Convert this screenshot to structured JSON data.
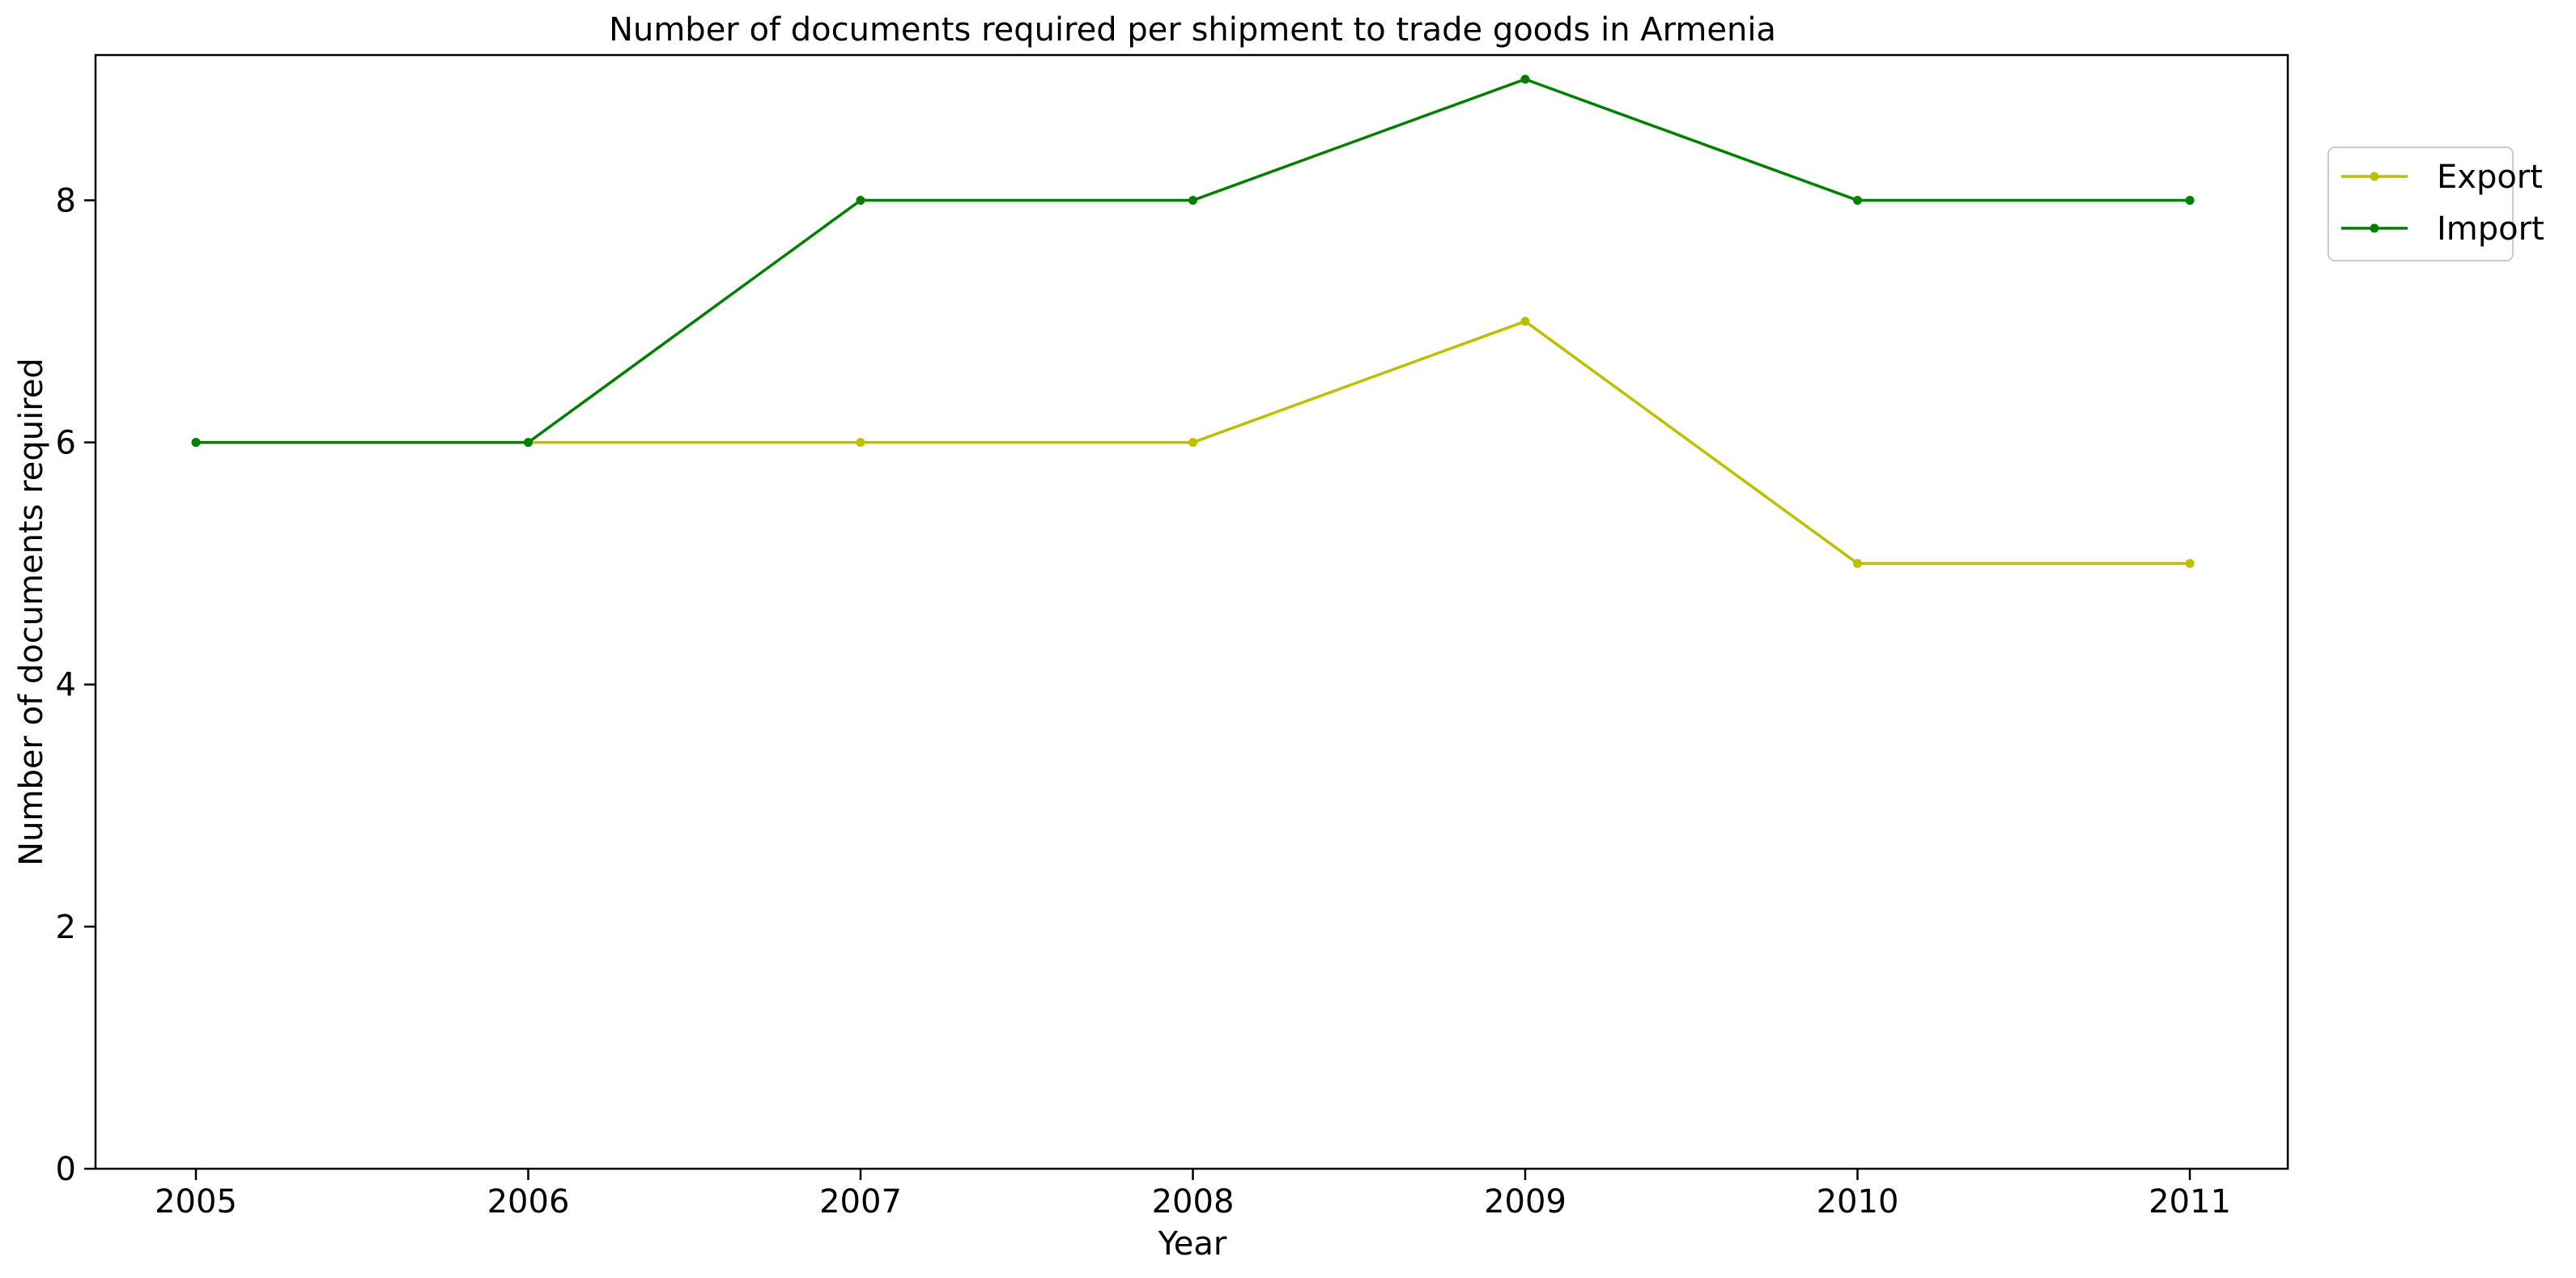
{
  "chart_data": {
    "type": "line",
    "title": "Number of documents required per shipment to trade goods in Armenia",
    "xlabel": "Year",
    "ylabel": "Number of documents required",
    "x": [
      "2005",
      "2006",
      "2007",
      "2008",
      "2009",
      "2010",
      "2011"
    ],
    "yticks": [
      "0",
      "2",
      "4",
      "6",
      "8"
    ],
    "ylim": [
      0,
      9.2
    ],
    "grid": false,
    "legend_position": "upper-right-outside",
    "series": [
      {
        "name": "Export",
        "color": "#bfbf00",
        "values": [
          6,
          6,
          6,
          6,
          7,
          5,
          5
        ]
      },
      {
        "name": "Import",
        "color": "#008000",
        "values": [
          6,
          6,
          8,
          8,
          9,
          8,
          8
        ]
      }
    ]
  }
}
